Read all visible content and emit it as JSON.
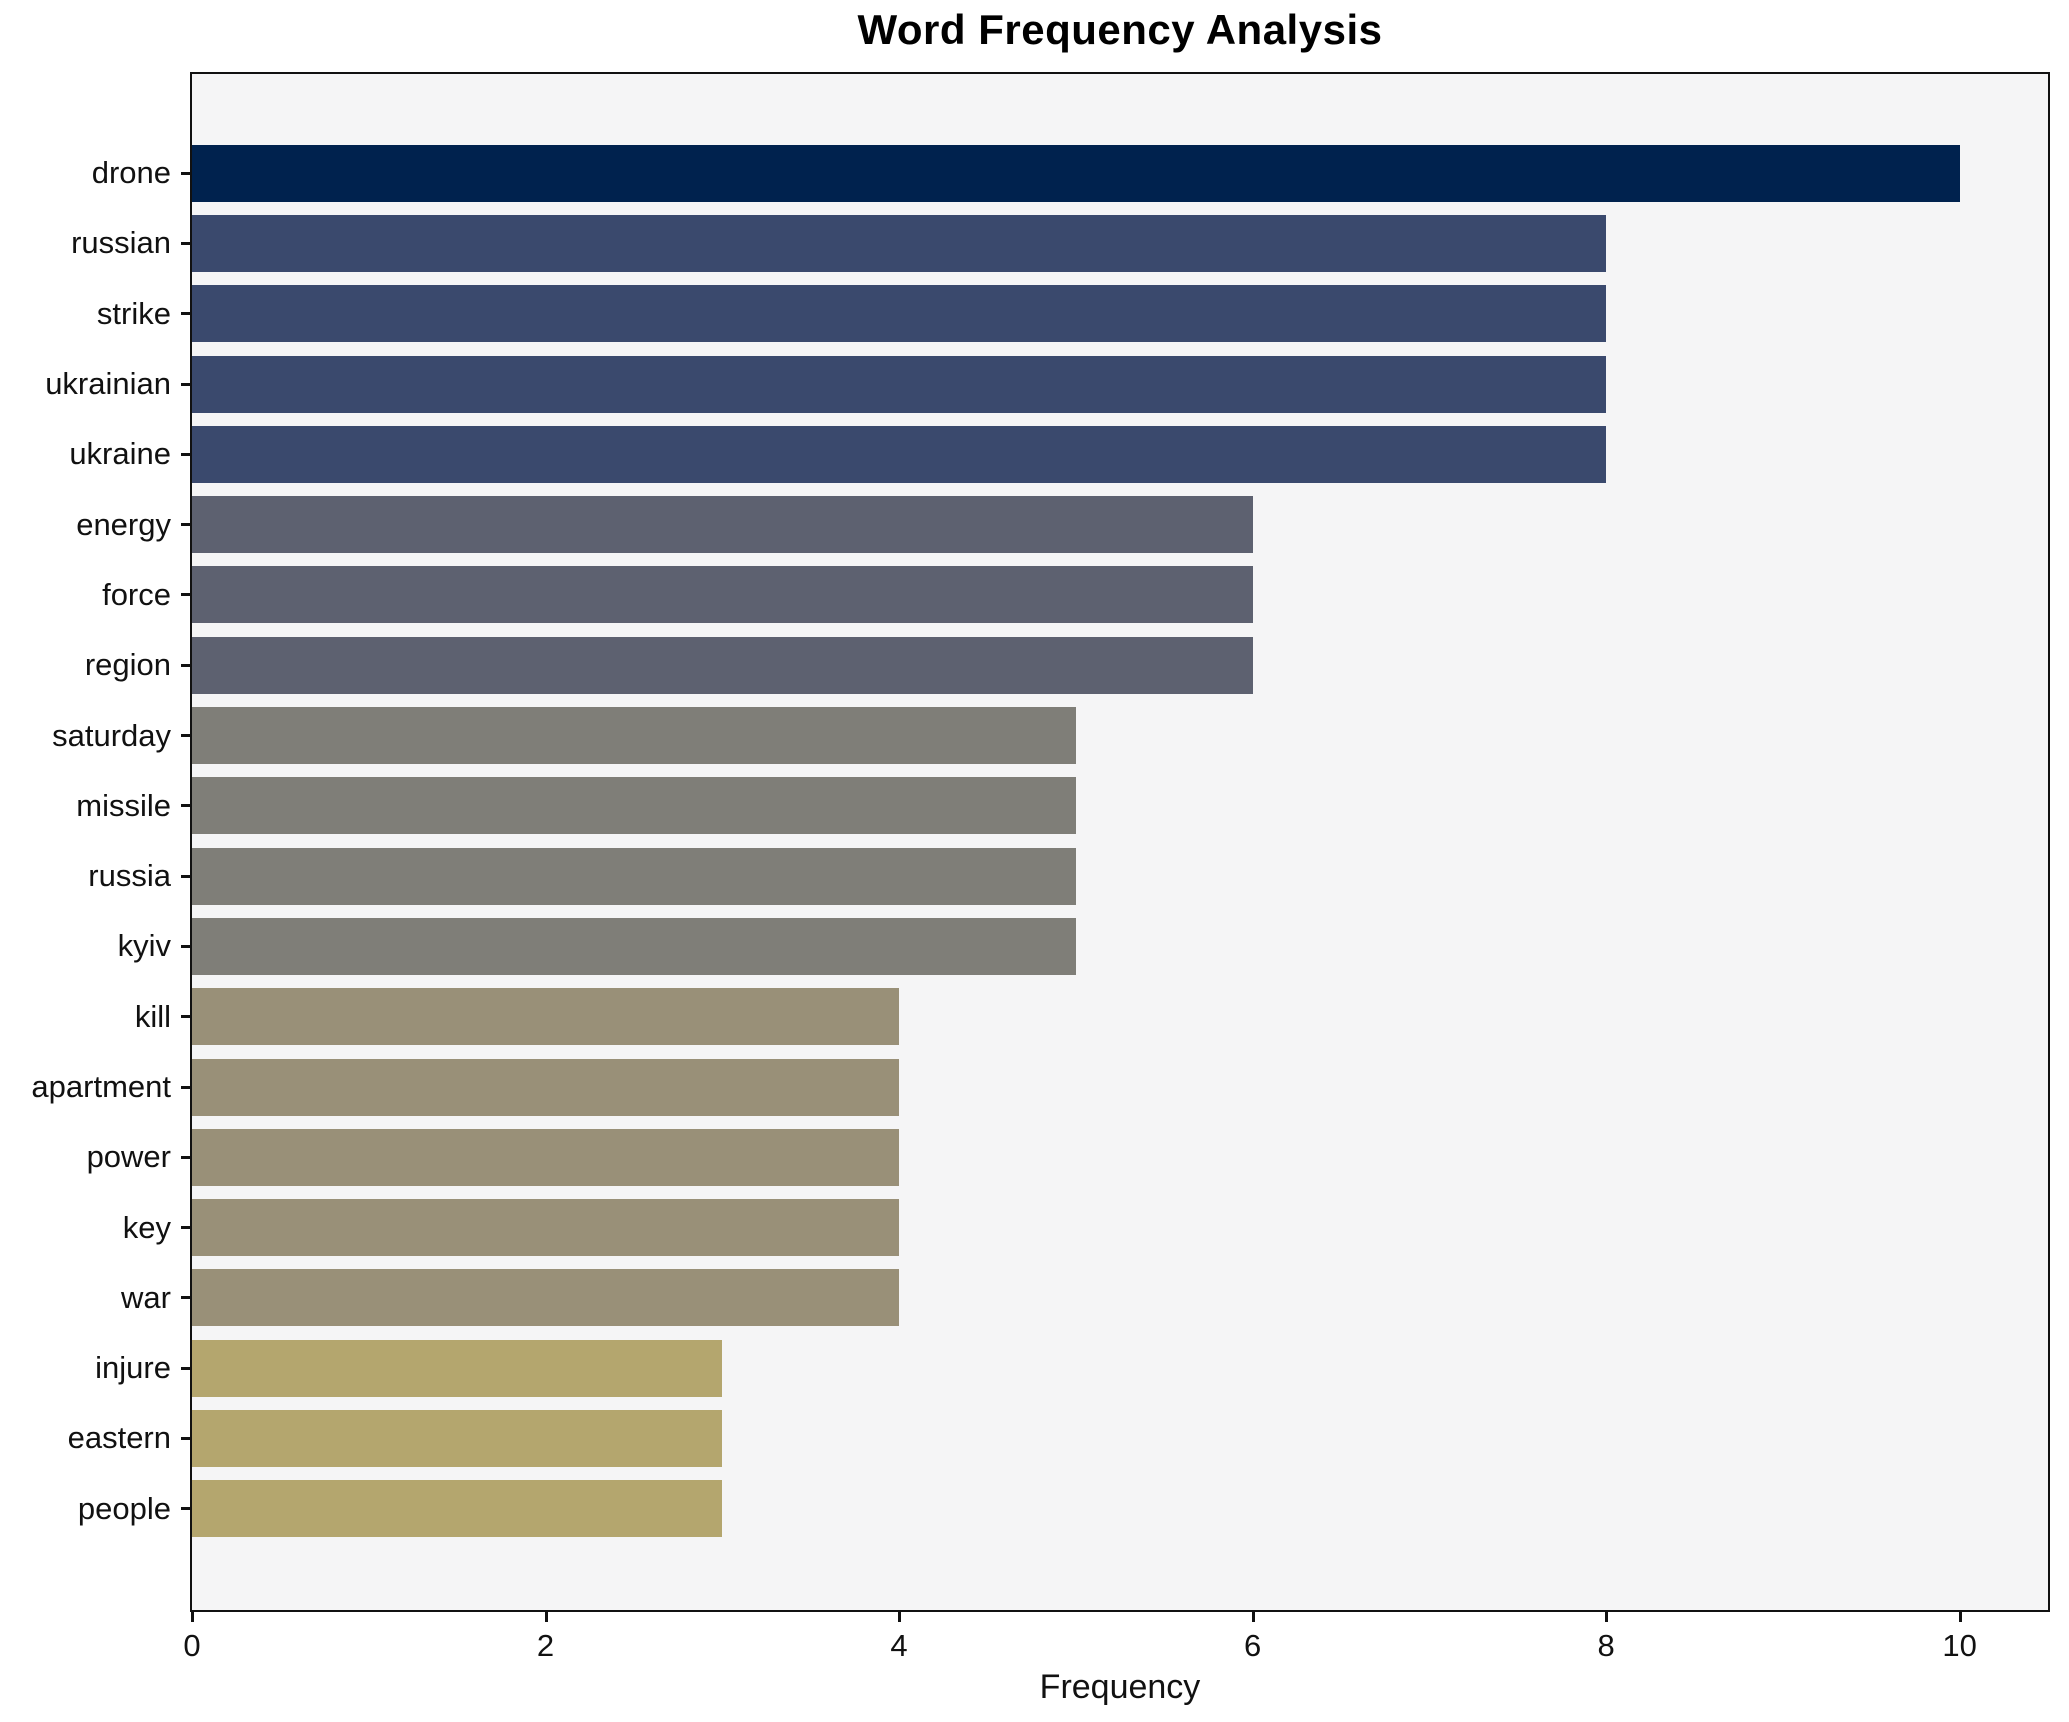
{
  "title": "Word Frequency Analysis",
  "xlabel": "Frequency",
  "colors": {
    "figure_bg": "#ffffff",
    "plot_bg": "#f5f5f6",
    "spine": "#111111",
    "text": "#111111"
  },
  "chart_data": {
    "type": "bar",
    "orientation": "horizontal",
    "title": "Word Frequency Analysis",
    "xlabel": "Frequency",
    "ylabel": "",
    "grid": false,
    "legend": null,
    "xlim": [
      0,
      10.5
    ],
    "xticks": [
      0,
      2,
      4,
      6,
      8,
      10
    ],
    "categories": [
      "drone",
      "russian",
      "strike",
      "ukrainian",
      "ukraine",
      "energy",
      "force",
      "region",
      "saturday",
      "missile",
      "russia",
      "kyiv",
      "kill",
      "apartment",
      "power",
      "key",
      "war",
      "injure",
      "eastern",
      "people"
    ],
    "values": [
      10,
      8,
      8,
      8,
      8,
      6,
      6,
      6,
      5,
      5,
      5,
      5,
      4,
      4,
      4,
      4,
      4,
      3,
      3,
      3
    ],
    "bar_colors": [
      "#00224e",
      "#3a496d",
      "#3a496d",
      "#3a496d",
      "#3a496d",
      "#5d6170",
      "#5d6170",
      "#5d6170",
      "#7f7e78",
      "#7f7e78",
      "#7f7e78",
      "#7f7e78",
      "#999078",
      "#999078",
      "#999078",
      "#999078",
      "#999078",
      "#b4a66e",
      "#b4a66e",
      "#b4a66e"
    ]
  }
}
